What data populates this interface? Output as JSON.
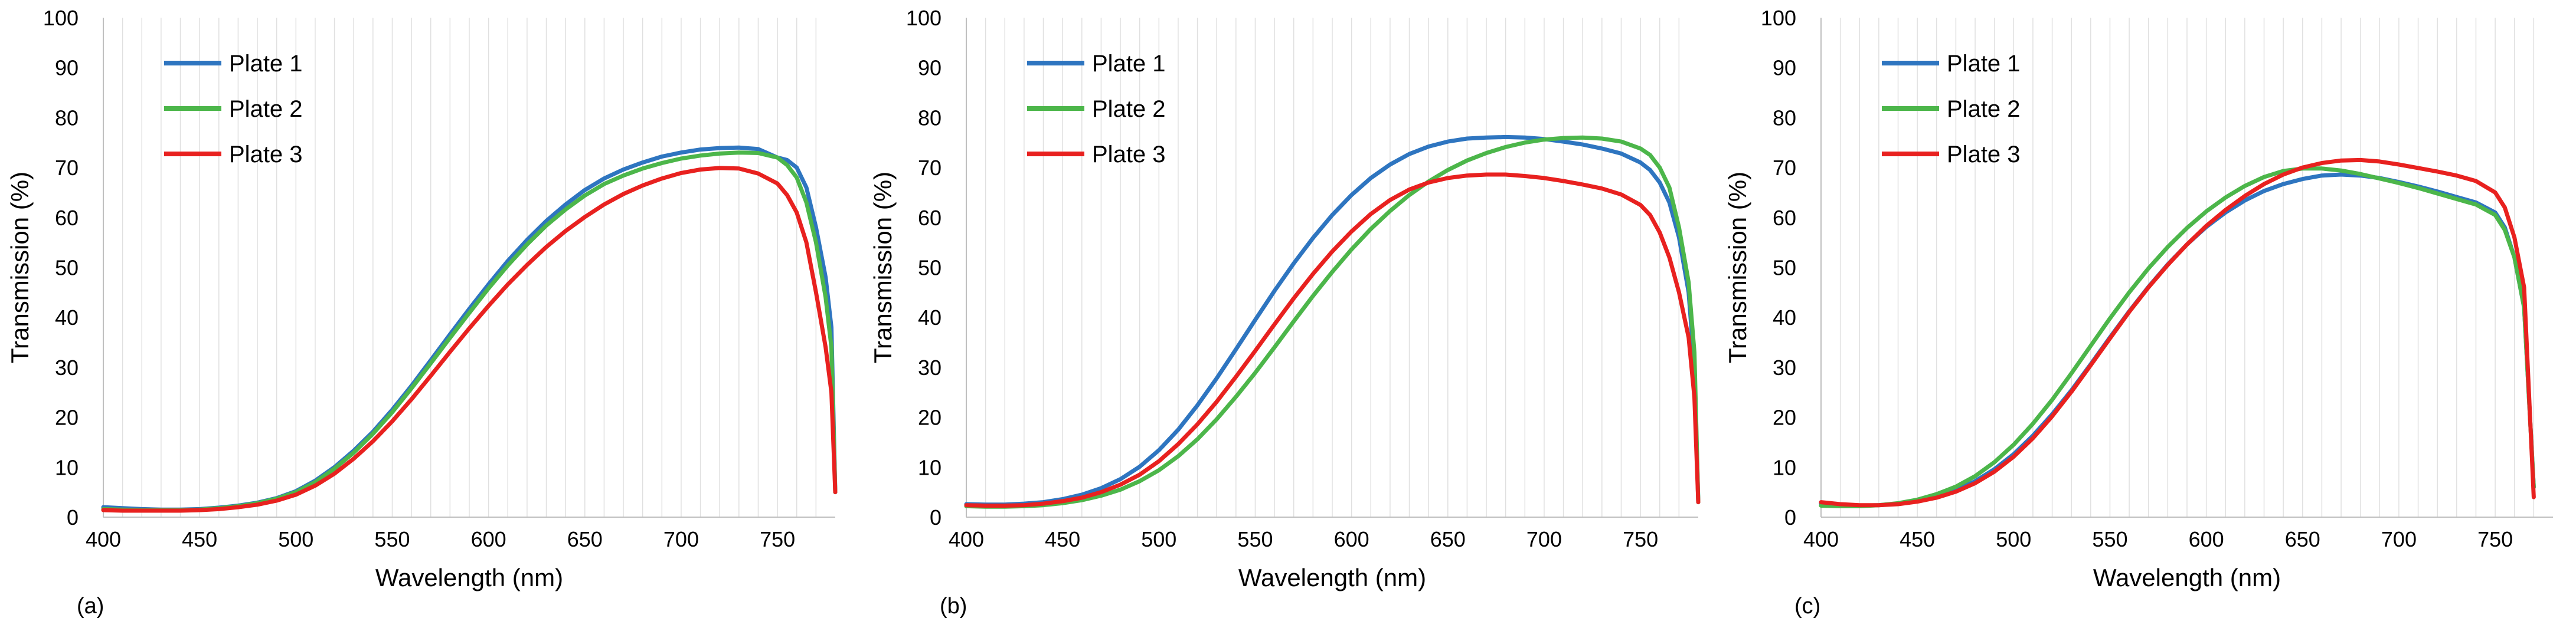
{
  "colors": {
    "plate1": "#2E75C0",
    "plate2": "#4CB64A",
    "plate3": "#E8211F"
  },
  "chart_data": [
    {
      "type": "line",
      "panel_label": "(a)",
      "xlabel": "Wavelength (nm)",
      "ylabel": "Transmission (%)",
      "xlim": [
        400,
        780
      ],
      "ylim": [
        0,
        100
      ],
      "xticks": [
        400,
        450,
        500,
        550,
        600,
        650,
        700,
        750
      ],
      "yticks": [
        0,
        10,
        20,
        30,
        40,
        50,
        60,
        70,
        80,
        90,
        100
      ],
      "grid": "vertical",
      "legend": "top-left",
      "series": [
        {
          "name": "Plate 1",
          "color": "#2E75C0",
          "x": [
            400,
            410,
            420,
            430,
            440,
            450,
            460,
            470,
            480,
            490,
            500,
            510,
            520,
            530,
            540,
            550,
            560,
            570,
            580,
            590,
            600,
            610,
            620,
            630,
            640,
            650,
            660,
            670,
            680,
            690,
            700,
            710,
            720,
            730,
            740,
            750,
            755,
            760,
            765,
            770,
            775,
            778,
            780
          ],
          "y": [
            2,
            1.8,
            1.6,
            1.5,
            1.5,
            1.6,
            1.9,
            2.3,
            2.9,
            3.8,
            5.2,
            7.3,
            10,
            13.3,
            17.1,
            21.5,
            26.3,
            31.4,
            36.6,
            41.7,
            46.6,
            51.3,
            55.5,
            59.3,
            62.6,
            65.5,
            67.8,
            69.6,
            71,
            72.2,
            73,
            73.6,
            73.9,
            74,
            73.7,
            72,
            71.5,
            70,
            66,
            58,
            48,
            38,
            5
          ]
        },
        {
          "name": "Plate 2",
          "color": "#4CB64A",
          "x": [
            400,
            410,
            420,
            430,
            440,
            450,
            460,
            470,
            480,
            490,
            500,
            510,
            520,
            530,
            540,
            550,
            560,
            570,
            580,
            590,
            600,
            610,
            620,
            630,
            640,
            650,
            660,
            670,
            680,
            690,
            700,
            710,
            720,
            730,
            740,
            750,
            755,
            760,
            765,
            770,
            775,
            778,
            780
          ],
          "y": [
            1.6,
            1.5,
            1.4,
            1.4,
            1.4,
            1.5,
            1.8,
            2.2,
            2.8,
            3.7,
            5,
            7,
            9.7,
            12.9,
            16.7,
            21,
            25.8,
            30.8,
            35.9,
            40.9,
            45.8,
            50.4,
            54.6,
            58.4,
            61.6,
            64.4,
            66.7,
            68.4,
            69.8,
            70.9,
            71.8,
            72.4,
            72.8,
            73,
            72.9,
            72,
            70.5,
            68,
            63,
            55,
            44,
            34,
            5
          ]
        },
        {
          "name": "Plate 3",
          "color": "#E8211F",
          "x": [
            400,
            410,
            420,
            430,
            440,
            450,
            460,
            470,
            480,
            490,
            500,
            510,
            520,
            530,
            540,
            550,
            560,
            570,
            580,
            590,
            600,
            610,
            620,
            630,
            640,
            650,
            660,
            670,
            680,
            690,
            700,
            710,
            720,
            730,
            740,
            750,
            755,
            760,
            765,
            770,
            775,
            778,
            780
          ],
          "y": [
            1.4,
            1.3,
            1.3,
            1.3,
            1.3,
            1.4,
            1.6,
            2,
            2.5,
            3.3,
            4.5,
            6.3,
            8.7,
            11.7,
            15.2,
            19.2,
            23.6,
            28.3,
            33.1,
            37.8,
            42.3,
            46.6,
            50.5,
            54.1,
            57.3,
            60.1,
            62.6,
            64.7,
            66.4,
            67.8,
            68.9,
            69.6,
            69.9,
            69.8,
            68.8,
            66.8,
            64.5,
            61,
            55,
            45,
            34,
            25,
            5
          ]
        }
      ]
    },
    {
      "type": "line",
      "panel_label": "(b)",
      "xlabel": "Wavelength (nm)",
      "ylabel": "Transmission (%)",
      "xlim": [
        400,
        780
      ],
      "ylim": [
        0,
        100
      ],
      "xticks": [
        400,
        450,
        500,
        550,
        600,
        650,
        700,
        750
      ],
      "yticks": [
        0,
        10,
        20,
        30,
        40,
        50,
        60,
        70,
        80,
        90,
        100
      ],
      "grid": "vertical",
      "legend": "top-left",
      "series": [
        {
          "name": "Plate 1",
          "color": "#2E75C0",
          "x": [
            400,
            410,
            420,
            430,
            440,
            450,
            460,
            470,
            480,
            490,
            500,
            510,
            520,
            530,
            540,
            550,
            560,
            570,
            580,
            590,
            600,
            610,
            620,
            630,
            640,
            650,
            660,
            670,
            680,
            690,
            700,
            710,
            720,
            730,
            740,
            750,
            755,
            760,
            765,
            770,
            775,
            778,
            780
          ],
          "y": [
            2.6,
            2.5,
            2.5,
            2.7,
            3,
            3.6,
            4.5,
            5.8,
            7.6,
            10.1,
            13.4,
            17.5,
            22.4,
            27.8,
            33.6,
            39.5,
            45.3,
            50.8,
            55.9,
            60.5,
            64.5,
            67.9,
            70.6,
            72.7,
            74.2,
            75.2,
            75.8,
            76,
            76.1,
            76,
            75.7,
            75.2,
            74.6,
            73.8,
            72.8,
            71,
            69.5,
            67,
            63,
            56,
            45,
            30,
            3
          ]
        },
        {
          "name": "Plate 2",
          "color": "#4CB64A",
          "x": [
            400,
            410,
            420,
            430,
            440,
            450,
            460,
            470,
            480,
            490,
            500,
            510,
            520,
            530,
            540,
            550,
            560,
            570,
            580,
            590,
            600,
            610,
            620,
            630,
            640,
            650,
            660,
            670,
            680,
            690,
            700,
            710,
            720,
            730,
            740,
            750,
            755,
            760,
            765,
            770,
            775,
            778,
            780
          ],
          "y": [
            2.2,
            2.1,
            2.1,
            2.2,
            2.4,
            2.8,
            3.4,
            4.3,
            5.5,
            7.2,
            9.4,
            12.2,
            15.6,
            19.6,
            24.1,
            28.9,
            34,
            39.2,
            44.3,
            49.1,
            53.6,
            57.7,
            61.3,
            64.5,
            67.2,
            69.5,
            71.4,
            72.9,
            74.1,
            75,
            75.6,
            75.9,
            76,
            75.8,
            75.2,
            73.8,
            72.5,
            70,
            66,
            58,
            47,
            33,
            3
          ]
        },
        {
          "name": "Plate 3",
          "color": "#E8211F",
          "x": [
            400,
            410,
            420,
            430,
            440,
            450,
            460,
            470,
            480,
            490,
            500,
            510,
            520,
            530,
            540,
            550,
            560,
            570,
            580,
            590,
            600,
            610,
            620,
            630,
            640,
            650,
            660,
            670,
            680,
            690,
            700,
            710,
            720,
            730,
            740,
            750,
            755,
            760,
            765,
            770,
            775,
            778,
            780
          ],
          "y": [
            2.4,
            2.3,
            2.3,
            2.4,
            2.7,
            3.2,
            3.9,
            5,
            6.5,
            8.5,
            11.2,
            14.6,
            18.6,
            23.1,
            28.1,
            33.3,
            38.6,
            43.8,
            48.7,
            53.2,
            57.2,
            60.7,
            63.5,
            65.6,
            67,
            67.9,
            68.4,
            68.6,
            68.6,
            68.3,
            67.9,
            67.3,
            66.6,
            65.8,
            64.6,
            62.5,
            60.5,
            57,
            52,
            45,
            36,
            24,
            3
          ]
        }
      ]
    },
    {
      "type": "line",
      "panel_label": "(c)",
      "xlabel": "Wavelength (nm)",
      "ylabel": "Transmission (%)",
      "xlim": [
        400,
        780
      ],
      "ylim": [
        0,
        100
      ],
      "xticks": [
        400,
        450,
        500,
        550,
        600,
        650,
        700,
        750
      ],
      "yticks": [
        0,
        10,
        20,
        30,
        40,
        50,
        60,
        70,
        80,
        90,
        100
      ],
      "grid": "vertical",
      "legend": "top-left",
      "series": [
        {
          "name": "Plate 1",
          "color": "#2E75C0",
          "x": [
            400,
            410,
            420,
            430,
            440,
            450,
            460,
            470,
            480,
            490,
            500,
            510,
            520,
            530,
            540,
            550,
            560,
            570,
            580,
            590,
            600,
            610,
            620,
            630,
            640,
            650,
            660,
            670,
            680,
            690,
            700,
            710,
            720,
            730,
            740,
            750,
            755,
            760,
            765,
            770
          ],
          "y": [
            2.7,
            2.4,
            2.3,
            2.4,
            2.7,
            3.2,
            4.1,
            5.4,
            7.2,
            9.6,
            12.6,
            16.3,
            20.6,
            25.4,
            30.6,
            36,
            41.2,
            46.1,
            50.6,
            54.6,
            58.1,
            61,
            63.4,
            65.3,
            66.7,
            67.7,
            68.4,
            68.6,
            68.4,
            67.9,
            67.1,
            66.2,
            65.2,
            64.1,
            63,
            61,
            58,
            52,
            42,
            6
          ]
        },
        {
          "name": "Plate 2",
          "color": "#4CB64A",
          "x": [
            400,
            410,
            420,
            430,
            440,
            450,
            460,
            470,
            480,
            490,
            500,
            510,
            520,
            530,
            540,
            550,
            560,
            570,
            580,
            590,
            600,
            610,
            620,
            630,
            640,
            650,
            660,
            670,
            680,
            690,
            700,
            710,
            720,
            730,
            740,
            750,
            755,
            760,
            765,
            770
          ],
          "y": [
            2.3,
            2.2,
            2.2,
            2.4,
            2.8,
            3.5,
            4.6,
            6.1,
            8.2,
            11,
            14.5,
            18.7,
            23.5,
            28.8,
            34.3,
            39.8,
            45,
            49.8,
            54.1,
            57.9,
            61.2,
            64,
            66.3,
            68.1,
            69.3,
            69.8,
            69.8,
            69.4,
            68.7,
            67.8,
            66.9,
            65.9,
            64.8,
            63.7,
            62.6,
            60.5,
            57.5,
            52,
            42,
            6
          ]
        },
        {
          "name": "Plate 3",
          "color": "#E8211F",
          "x": [
            400,
            410,
            420,
            430,
            440,
            450,
            460,
            470,
            480,
            490,
            500,
            510,
            520,
            530,
            540,
            550,
            560,
            570,
            580,
            590,
            600,
            610,
            620,
            630,
            640,
            650,
            660,
            670,
            680,
            690,
            700,
            710,
            720,
            730,
            740,
            750,
            755,
            760,
            765,
            770
          ],
          "y": [
            3,
            2.6,
            2.4,
            2.4,
            2.6,
            3.1,
            3.9,
            5.1,
            6.8,
            9.1,
            12.1,
            15.8,
            20.2,
            25.1,
            30.4,
            35.8,
            41.1,
            46,
            50.5,
            54.6,
            58.3,
            61.5,
            64.3,
            66.7,
            68.6,
            70,
            70.9,
            71.4,
            71.5,
            71.2,
            70.6,
            69.9,
            69.2,
            68.4,
            67.3,
            65,
            62,
            56,
            46,
            4
          ]
        }
      ]
    }
  ]
}
